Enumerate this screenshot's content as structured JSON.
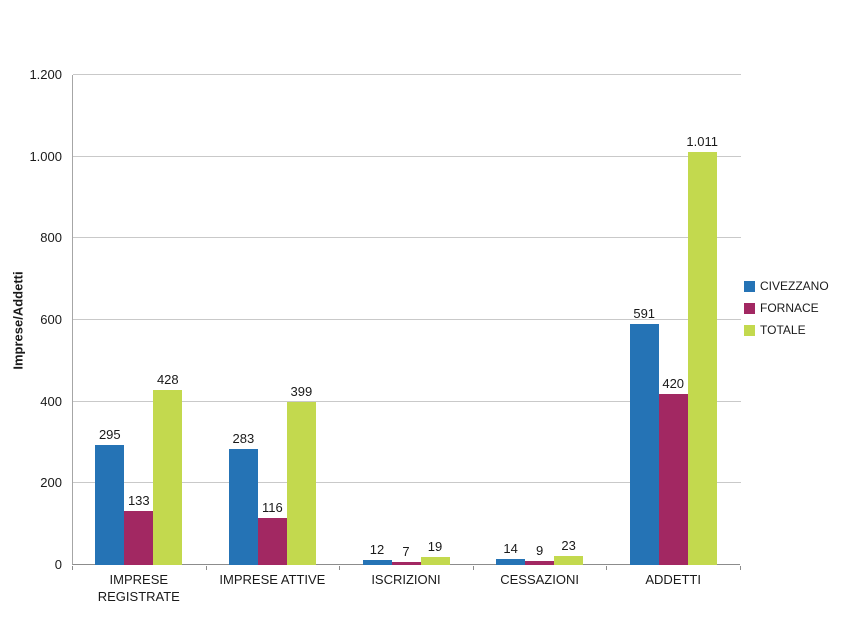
{
  "chart_data": {
    "type": "bar",
    "title": "",
    "ylabel": "Imprese/Addetti",
    "xlabel": "",
    "ylim": [
      0,
      1200
    ],
    "ytick_labels": [
      "0",
      "200",
      "400",
      "600",
      "800",
      "1.000",
      "1.200"
    ],
    "grid": true,
    "legend_position": "right",
    "categories": [
      "IMPRESE REGISTRATE",
      "IMPRESE ATTIVE",
      "ISCRIZIONI",
      "CESSAZIONI",
      "ADDETTI"
    ],
    "series": [
      {
        "name": "CIVEZZANO",
        "color": "#2573B5",
        "values": [
          295,
          283,
          12,
          14,
          591
        ],
        "labels": [
          "295",
          "283",
          "12",
          "14",
          "591"
        ]
      },
      {
        "name": "FORNACE",
        "color": "#A22862",
        "values": [
          133,
          116,
          7,
          9,
          420
        ],
        "labels": [
          "133",
          "116",
          "7",
          "9",
          "420"
        ]
      },
      {
        "name": "TOTALE",
        "color": "#C3D94E",
        "values": [
          428,
          399,
          19,
          23,
          1011
        ],
        "labels": [
          "428",
          "399",
          "19",
          "23",
          "1.011"
        ]
      }
    ]
  }
}
